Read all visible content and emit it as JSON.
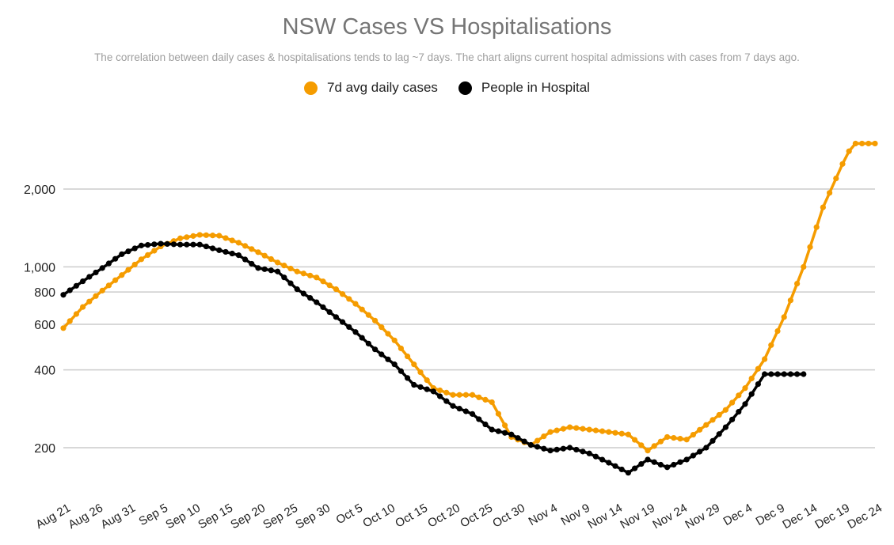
{
  "chart_data": {
    "type": "line",
    "title": "NSW Cases VS Hospitalisations",
    "subtitle": "The correlation between daily cases & hospitalisations tends to lag ~7 days. The chart aligns current hospital admissions with cases from 7 days ago.",
    "yscale": "log",
    "ylim": [
      150,
      3000
    ],
    "y_ticks": [
      200,
      400,
      600,
      800,
      1000,
      2000
    ],
    "y_tick_labels": [
      "200",
      "400",
      "600",
      "800",
      "1,000",
      "2,000"
    ],
    "x_tick_labels": [
      "Aug 21",
      "Aug 26",
      "Aug 31",
      "Sep 5",
      "Sep 10",
      "Sep 15",
      "Sep 20",
      "Sep 25",
      "Sep 30",
      "Oct 5",
      "Oct 10",
      "Oct 15",
      "Oct 20",
      "Oct 25",
      "Oct 30",
      "Nov 4",
      "Nov 9",
      "Nov 14",
      "Nov 19",
      "Nov 24",
      "Nov 29",
      "Dec 4",
      "Dec 9",
      "Dec 14",
      "Dec 19",
      "Dec 24"
    ],
    "x_day_range": [
      0,
      125
    ],
    "series": [
      {
        "name": "7d avg daily cases",
        "color": "#f59c00",
        "days": [
          0,
          3,
          6,
          9,
          12,
          15,
          18,
          21,
          24,
          27,
          30,
          33,
          36,
          39,
          42,
          45,
          48,
          51,
          54,
          57,
          60,
          63,
          66,
          69,
          72,
          75,
          78,
          81,
          84,
          87,
          90,
          93,
          96,
          99,
          102,
          105,
          108,
          111,
          114,
          117,
          120,
          121,
          122,
          123,
          124,
          125
        ],
        "values": [
          580,
          700,
          810,
          930,
          1070,
          1200,
          1290,
          1330,
          1320,
          1240,
          1140,
          1040,
          960,
          910,
          820,
          720,
          620,
          520,
          420,
          340,
          320,
          320,
          300,
          220,
          205,
          230,
          240,
          235,
          230,
          225,
          195,
          220,
          215,
          245,
          280,
          340,
          440,
          640,
          1000,
          1700,
          2500,
          2800,
          3000,
          3000,
          3000,
          3000
        ]
      },
      {
        "name": "People in Hospital",
        "color": "#000000",
        "days": [
          0,
          3,
          6,
          9,
          12,
          15,
          18,
          21,
          24,
          27,
          30,
          33,
          36,
          39,
          42,
          45,
          48,
          51,
          54,
          57,
          60,
          63,
          66,
          69,
          72,
          75,
          78,
          81,
          84,
          87,
          90,
          93,
          96,
          99,
          102,
          105,
          108,
          111,
          114,
          117
        ],
        "values": [
          780,
          880,
          990,
          1120,
          1210,
          1230,
          1220,
          1220,
          1160,
          1110,
          990,
          960,
          820,
          730,
          640,
          560,
          480,
          420,
          350,
          330,
          290,
          270,
          235,
          225,
          205,
          195,
          200,
          190,
          175,
          160,
          180,
          168,
          180,
          200,
          240,
          295,
          385,
          385,
          385,
          385
        ]
      }
    ],
    "legend": "top-center"
  },
  "colors": {
    "cases": "#f59c00",
    "hospital": "#000000",
    "grid": "#cccccc"
  }
}
